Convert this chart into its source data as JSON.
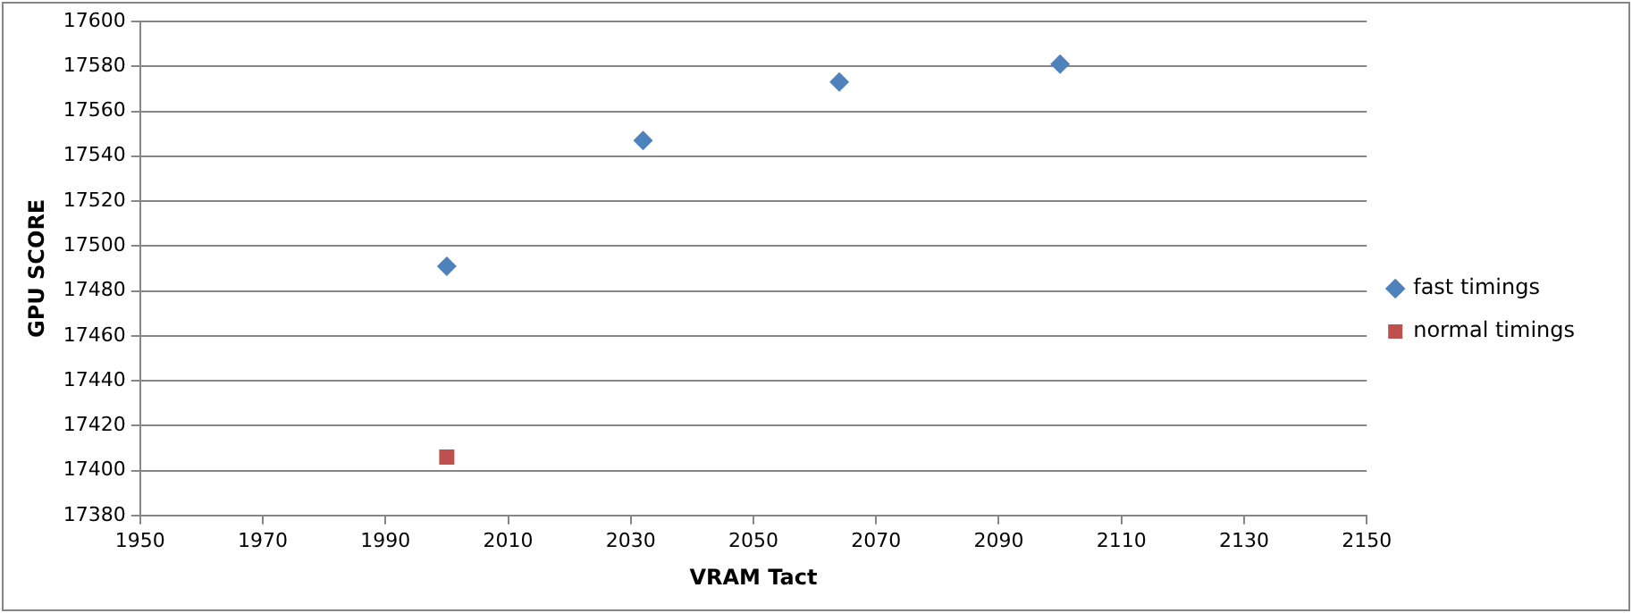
{
  "chart_data": {
    "type": "scatter",
    "xlabel": "VRAM Tact",
    "ylabel": "GPU SCORE",
    "xlim": [
      1950,
      2150
    ],
    "xticks": [
      1950,
      1970,
      1990,
      2010,
      2030,
      2050,
      2070,
      2090,
      2110,
      2130,
      2150
    ],
    "ylim": [
      17380,
      17600
    ],
    "yticks": [
      17380,
      17400,
      17420,
      17440,
      17460,
      17480,
      17500,
      17520,
      17540,
      17560,
      17580,
      17600
    ],
    "grid": "y",
    "legend": "right",
    "series": [
      {
        "name": "fast timings",
        "color": "#4f81bd",
        "marker": "diamond",
        "x": [
          2000,
          2032,
          2064,
          2100
        ],
        "values": [
          17491,
          17547,
          17573,
          17581
        ]
      },
      {
        "name": "normal timings",
        "color": "#c0504d",
        "marker": "square",
        "x": [
          2000
        ],
        "values": [
          17406
        ]
      }
    ]
  }
}
